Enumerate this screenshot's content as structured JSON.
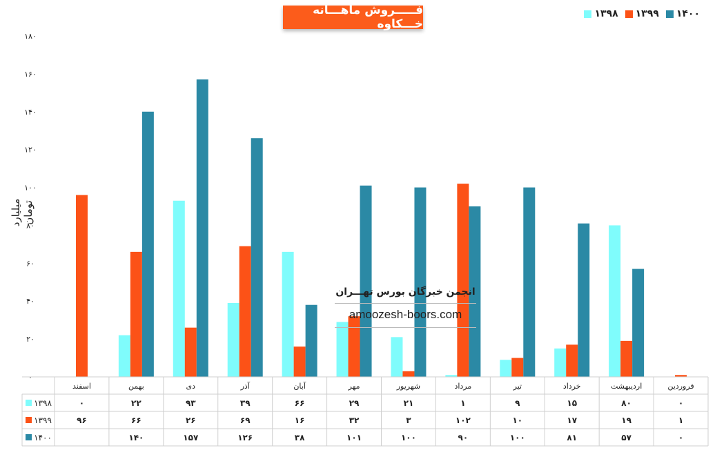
{
  "chart_data": {
    "type": "bar",
    "title": "فـــــروش ماهـــانه خـــكاوه",
    "ylabel": "میلیارد تومان",
    "xlabel": "",
    "ylim": [
      0,
      180
    ],
    "y_ticks": [
      {
        "value": 0,
        "label": "۰"
      },
      {
        "value": 20,
        "label": "۲۰"
      },
      {
        "value": 40,
        "label": "۴۰"
      },
      {
        "value": 60,
        "label": "۶۰"
      },
      {
        "value": 80,
        "label": "۸۰"
      },
      {
        "value": 100,
        "label": "۱۰۰"
      },
      {
        "value": 120,
        "label": "۱۲۰"
      },
      {
        "value": 140,
        "label": "۱۴۰"
      },
      {
        "value": 160,
        "label": "۱۶۰"
      },
      {
        "value": 180,
        "label": "۱۸۰"
      }
    ],
    "categories": [
      "فروردین",
      "اردیبهشت",
      "خرداد",
      "تیر",
      "مرداد",
      "شهریور",
      "مهر",
      "آبان",
      "آذر",
      "دی",
      "بهمن",
      "اسفند"
    ],
    "series": [
      {
        "name": "۱۳۹۸",
        "color": "#7ffcfc",
        "values": [
          0,
          80,
          15,
          9,
          1,
          21,
          29,
          66,
          39,
          93,
          22,
          0
        ],
        "labels": [
          "۰",
          "۸۰",
          "۱۵",
          "۹",
          "۱",
          "۲۱",
          "۲۹",
          "۶۶",
          "۳۹",
          "۹۳",
          "۲۲",
          "۰"
        ]
      },
      {
        "name": "۱۳۹۹",
        "color": "#fc5217",
        "values": [
          1,
          19,
          17,
          10,
          102,
          3,
          32,
          16,
          69,
          26,
          66,
          96
        ],
        "labels": [
          "۱",
          "۱۹",
          "۱۷",
          "۱۰",
          "۱۰۲",
          "۳",
          "۳۲",
          "۱۶",
          "۶۹",
          "۲۶",
          "۶۶",
          "۹۶"
        ]
      },
      {
        "name": "۱۴۰۰",
        "color": "#2b89a5",
        "values": [
          0,
          57,
          81,
          100,
          90,
          100,
          101,
          38,
          126,
          157,
          140,
          null
        ],
        "labels": [
          "۰",
          "۵۷",
          "۸۱",
          "۱۰۰",
          "۹۰",
          "۱۰۰",
          "۱۰۱",
          "۳۸",
          "۱۲۶",
          "۱۵۷",
          "۱۴۰",
          ""
        ]
      }
    ],
    "legend_position": "top-right",
    "data_table": true,
    "grid": false
  },
  "watermark": {
    "line1": "انجمن خبرگان بورس تهـــران",
    "line2": "amoozesh-boors.com"
  }
}
